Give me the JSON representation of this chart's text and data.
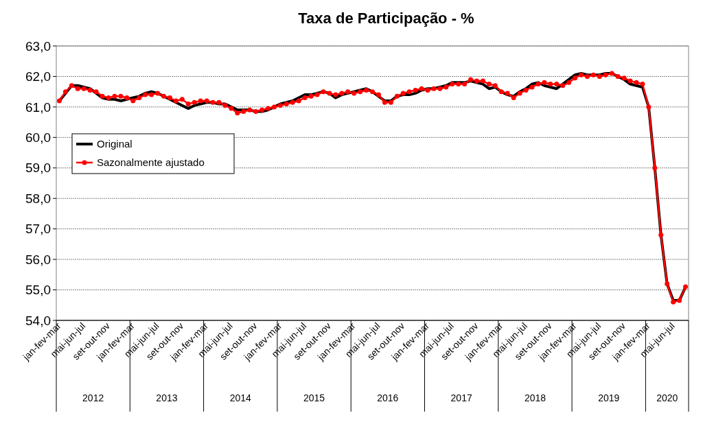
{
  "chart_data": {
    "type": "line",
    "title": "Taxa de Participação - %",
    "categories": [
      "jan-fev-mar",
      null,
      null,
      null,
      "mai-jun-jul",
      null,
      null,
      null,
      "set-out-nov",
      null,
      null,
      null,
      "jan-fev-mar",
      null,
      null,
      null,
      "mai-jun-jul",
      null,
      null,
      null,
      "set-out-nov",
      null,
      null,
      null,
      "jan-fev-mar",
      null,
      null,
      null,
      "mai-jun-jul",
      null,
      null,
      null,
      "set-out-nov",
      null,
      null,
      null,
      "jan-fev-mar",
      null,
      null,
      null,
      "mai-jun-jul",
      null,
      null,
      null,
      "set-out-nov",
      null,
      null,
      null,
      "jan-fev-mar",
      null,
      null,
      null,
      "mai-jun-jul",
      null,
      null,
      null,
      "set-out-nov",
      null,
      null,
      null,
      "jan-fev-mar",
      null,
      null,
      null,
      "mai-jun-jul",
      null,
      null,
      null,
      "set-out-nov",
      null,
      null,
      null,
      "jan-fev-mar",
      null,
      null,
      null,
      "mai-jun-jul",
      null,
      null,
      null,
      "set-out-nov",
      null,
      null,
      null,
      "jan-fev-mar",
      null,
      null,
      null,
      "mai-jun-jul",
      null,
      null,
      null,
      "set-out-nov",
      null,
      null,
      null,
      "jan-fev-mar",
      null,
      null,
      null,
      "mai-jun-jul",
      null,
      null
    ],
    "series": [
      {
        "name": "Original",
        "color": "#000000",
        "marker": "none",
        "values": [
          61.2,
          61.45,
          61.7,
          61.7,
          61.65,
          61.6,
          61.45,
          61.3,
          61.25,
          61.25,
          61.2,
          61.25,
          61.3,
          61.35,
          61.45,
          61.5,
          61.45,
          61.35,
          61.25,
          61.15,
          61.05,
          60.95,
          61.05,
          61.1,
          61.15,
          61.15,
          61.1,
          61.1,
          61.0,
          60.9,
          60.9,
          60.9,
          60.85,
          60.85,
          60.9,
          61.0,
          61.1,
          61.15,
          61.2,
          61.3,
          61.4,
          61.4,
          61.45,
          61.5,
          61.45,
          61.3,
          61.4,
          61.45,
          61.5,
          61.55,
          61.6,
          61.5,
          61.35,
          61.2,
          61.2,
          61.35,
          61.4,
          61.4,
          61.45,
          61.55,
          61.6,
          61.6,
          61.65,
          61.7,
          61.8,
          61.8,
          61.8,
          61.85,
          61.8,
          61.75,
          61.6,
          61.65,
          61.5,
          61.4,
          61.35,
          61.5,
          61.6,
          61.75,
          61.8,
          61.7,
          61.65,
          61.6,
          61.75,
          61.9,
          62.05,
          62.1,
          62.05,
          62.05,
          62.05,
          62.1,
          62.1,
          62.0,
          61.9,
          61.75,
          61.7,
          61.65,
          61.0,
          59.0,
          56.8,
          55.2,
          54.65,
          54.65,
          55.1
        ]
      },
      {
        "name": "Sazonalmente ajustado",
        "color": "#ff0000",
        "marker": "circle",
        "values": [
          61.2,
          61.5,
          61.7,
          61.6,
          61.6,
          61.55,
          61.5,
          61.35,
          61.3,
          61.35,
          61.35,
          61.3,
          61.2,
          61.3,
          61.4,
          61.4,
          61.45,
          61.35,
          61.3,
          61.2,
          61.25,
          61.1,
          61.15,
          61.2,
          61.2,
          61.15,
          61.15,
          61.05,
          60.95,
          60.8,
          60.85,
          60.9,
          60.85,
          60.9,
          60.95,
          61.0,
          61.05,
          61.1,
          61.15,
          61.2,
          61.3,
          61.35,
          61.4,
          61.5,
          61.45,
          61.4,
          61.45,
          61.5,
          61.45,
          61.5,
          61.55,
          61.5,
          61.4,
          61.15,
          61.15,
          61.35,
          61.45,
          61.5,
          61.55,
          61.6,
          61.55,
          61.6,
          61.6,
          61.65,
          61.75,
          61.75,
          61.75,
          61.9,
          61.85,
          61.85,
          61.75,
          61.7,
          61.5,
          61.45,
          61.3,
          61.45,
          61.55,
          61.65,
          61.75,
          61.8,
          61.75,
          61.75,
          61.7,
          61.8,
          61.95,
          62.05,
          62.0,
          62.05,
          62.0,
          62.05,
          62.1,
          62.0,
          61.95,
          61.85,
          61.8,
          61.75,
          61.0,
          59.0,
          56.8,
          55.2,
          54.6,
          54.65,
          55.1
        ]
      }
    ],
    "ylim": [
      54,
      63
    ],
    "yticks": [
      {
        "value": 54,
        "label": "54,0"
      },
      {
        "value": 55,
        "label": "55,0"
      },
      {
        "value": 56,
        "label": "56,0"
      },
      {
        "value": 57,
        "label": "57,0"
      },
      {
        "value": 58,
        "label": "58,0"
      },
      {
        "value": 59,
        "label": "59,0"
      },
      {
        "value": 60,
        "label": "60,0"
      },
      {
        "value": 61,
        "label": "61,0"
      },
      {
        "value": 62,
        "label": "62,0"
      },
      {
        "value": 63,
        "label": "63,0"
      }
    ],
    "grid": "y",
    "legend": "left",
    "line_style": "solid",
    "annotations": [
      "2012",
      "2013",
      "2014",
      "2015",
      "2016",
      "2017",
      "2018",
      "2019",
      "2020"
    ]
  }
}
